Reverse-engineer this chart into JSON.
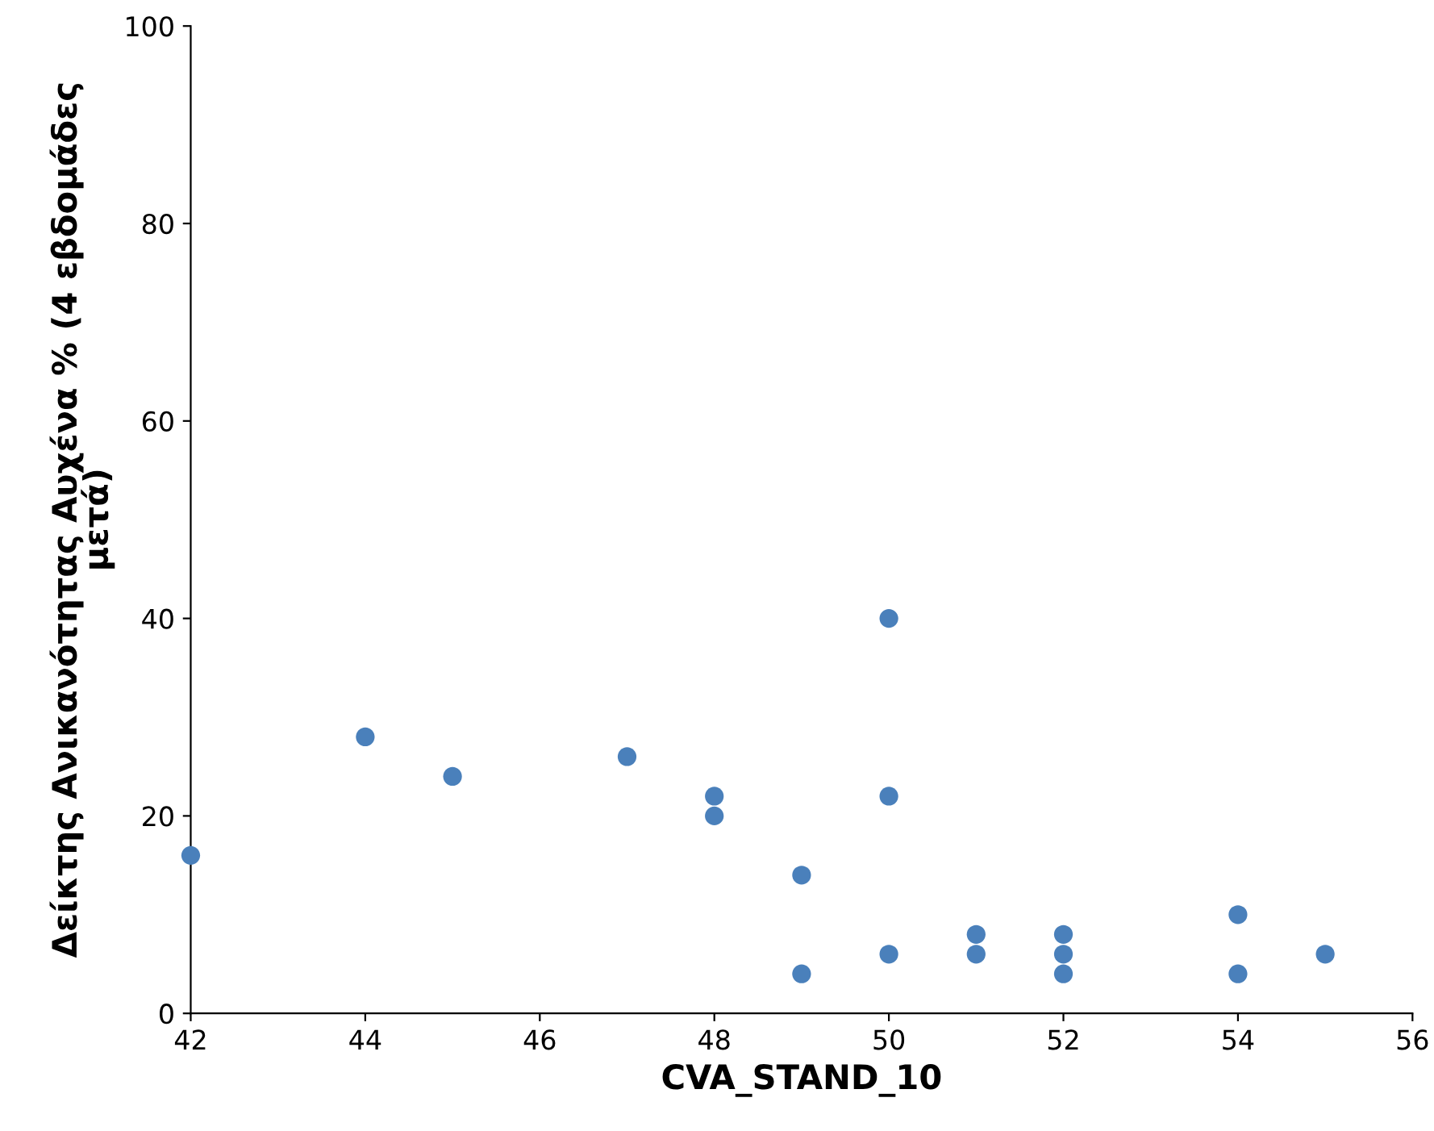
{
  "chart_data": {
    "type": "scatter",
    "xlabel": "CVA_STAND_10",
    "ylabel": "Δείκτης Ανικανότητας Αυχένα % (4 εβδομάδες μετά)",
    "x": [
      42,
      44,
      45,
      47,
      48,
      48,
      49,
      49,
      50,
      50,
      50,
      51,
      51,
      52,
      52,
      52,
      54,
      54,
      55
    ],
    "series": [
      {
        "color": "#4a80bb",
        "values": [
          16,
          28,
          24,
          26,
          22,
          20,
          14,
          4,
          40,
          22,
          6,
          8,
          6,
          8,
          6,
          4,
          10,
          4,
          6
        ]
      }
    ],
    "xlim": [
      42,
      56
    ],
    "xticks": [
      42,
      44,
      46,
      48,
      50,
      52,
      54,
      56
    ],
    "ylim": [
      0,
      100
    ],
    "yticks": [
      0,
      20,
      40,
      60,
      80,
      100
    ],
    "marker": "circle",
    "grid": false
  }
}
